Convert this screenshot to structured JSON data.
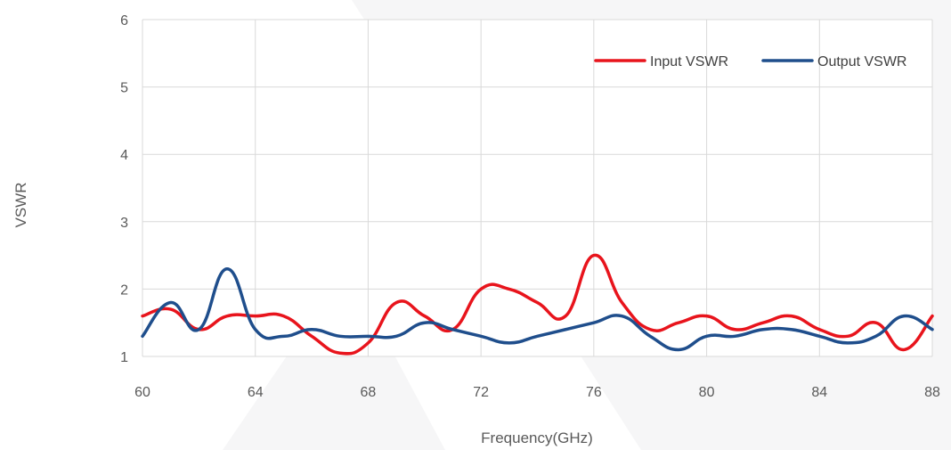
{
  "chart_data": {
    "type": "line",
    "title": "",
    "xlabel": "Frequency(GHz)",
    "ylabel": "VSWR",
    "xlim": [
      60,
      88
    ],
    "ylim": [
      1,
      6
    ],
    "x_ticks": [
      "60",
      "64",
      "68",
      "72",
      "76",
      "80",
      "84",
      "88"
    ],
    "y_ticks": [
      "1",
      "2",
      "3",
      "4",
      "5",
      "6"
    ],
    "grid": "vertical and horizontal",
    "legend_position": "top-right",
    "series": [
      {
        "name": "Input VSWR",
        "color": "#e8141c",
        "x": [
          60,
          61,
          62,
          63,
          64,
          65,
          66,
          67,
          68,
          69,
          70,
          71,
          72,
          73,
          74,
          75,
          76,
          77,
          78,
          79,
          80,
          81,
          82,
          83,
          84,
          85,
          86,
          87,
          88
        ],
        "y": [
          1.6,
          1.7,
          1.4,
          1.6,
          1.6,
          1.6,
          1.3,
          1.05,
          1.2,
          1.8,
          1.6,
          1.4,
          2.0,
          2.0,
          1.8,
          1.6,
          2.5,
          1.8,
          1.4,
          1.5,
          1.6,
          1.4,
          1.5,
          1.6,
          1.4,
          1.3,
          1.5,
          1.1,
          1.6
        ]
      },
      {
        "name": "Output VSWR",
        "color": "#1f4e8c",
        "x": [
          60,
          61,
          62,
          63,
          64,
          65,
          66,
          67,
          68,
          69,
          70,
          71,
          72,
          73,
          74,
          75,
          76,
          77,
          78,
          79,
          80,
          81,
          82,
          83,
          84,
          85,
          86,
          87,
          88
        ],
        "y": [
          1.3,
          1.8,
          1.4,
          2.3,
          1.4,
          1.3,
          1.4,
          1.3,
          1.3,
          1.3,
          1.5,
          1.4,
          1.3,
          1.2,
          1.3,
          1.4,
          1.5,
          1.6,
          1.3,
          1.1,
          1.3,
          1.3,
          1.4,
          1.4,
          1.3,
          1.2,
          1.3,
          1.6,
          1.4
        ]
      }
    ]
  }
}
